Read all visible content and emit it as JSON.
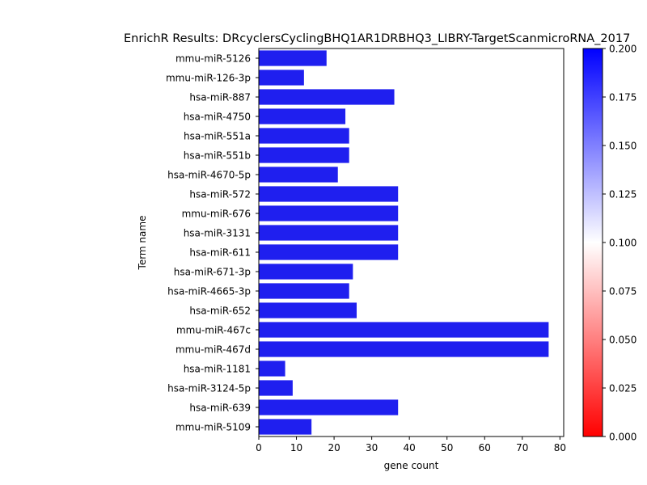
{
  "chart_data": {
    "type": "bar",
    "orientation": "horizontal",
    "title": "EnrichR Results: DRcyclersCyclingBHQ1AR1DRBHQ3_LIBRY-TargetScanmicroRNA_2017",
    "xlabel": "gene count",
    "ylabel": "Term name",
    "xlim": [
      0,
      81
    ],
    "xticks": [
      0,
      10,
      20,
      30,
      40,
      50,
      60,
      70,
      80
    ],
    "categories": [
      "mmu-miR-5126",
      "mmu-miR-126-3p",
      "hsa-miR-887",
      "hsa-miR-4750",
      "hsa-miR-551a",
      "hsa-miR-551b",
      "hsa-miR-4670-5p",
      "hsa-miR-572",
      "mmu-miR-676",
      "hsa-miR-3131",
      "hsa-miR-611",
      "hsa-miR-671-3p",
      "hsa-miR-4665-3p",
      "hsa-miR-652",
      "mmu-miR-467c",
      "mmu-miR-467d",
      "hsa-miR-1181",
      "hsa-miR-3124-5p",
      "hsa-miR-639",
      "mmu-miR-5109"
    ],
    "values": [
      18,
      12,
      36,
      23,
      24,
      24,
      21,
      37,
      37,
      37,
      37,
      25,
      24,
      26,
      77,
      77,
      7,
      9,
      37,
      14
    ],
    "bar_color": "#1f1fef",
    "colorbar": {
      "min": 0.0,
      "max": 0.2,
      "ticks": [
        "0.000",
        "0.025",
        "0.050",
        "0.075",
        "0.100",
        "0.125",
        "0.150",
        "0.175",
        "0.200"
      ],
      "colors": [
        "#ff0000",
        "#ffffff",
        "#0000ff"
      ]
    }
  }
}
